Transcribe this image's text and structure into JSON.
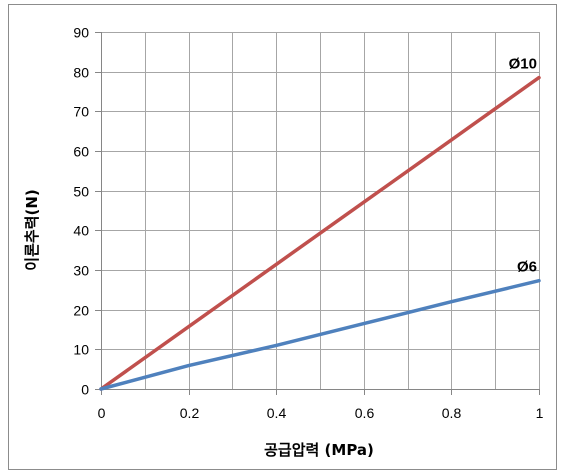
{
  "chart_data": {
    "type": "line",
    "title": "",
    "xlabel": "공급압력 (MPa)",
    "ylabel": "이론추력(N)",
    "xlim": [
      0,
      1
    ],
    "ylim": [
      0,
      90
    ],
    "x_ticks": [
      "0",
      "0.2",
      "0.4",
      "0.6",
      "0.8",
      "1"
    ],
    "y_ticks": [
      "0",
      "10",
      "20",
      "30",
      "40",
      "50",
      "60",
      "70",
      "80",
      "90"
    ],
    "grid": true,
    "legend": "none",
    "series": [
      {
        "name": "Ø10",
        "color": "#c0504d",
        "x": [
          0,
          0.2,
          0.4,
          0.6,
          0.8,
          1
        ],
        "y": [
          0,
          15.7,
          31.4,
          47.1,
          62.8,
          78.5
        ]
      },
      {
        "name": "Ø6",
        "color": "#4f81bd",
        "x": [
          0,
          0.2,
          0.4,
          0.6,
          0.8,
          1
        ],
        "y": [
          0,
          5.9,
          11.0,
          16.5,
          22.0,
          27.3
        ]
      }
    ]
  }
}
